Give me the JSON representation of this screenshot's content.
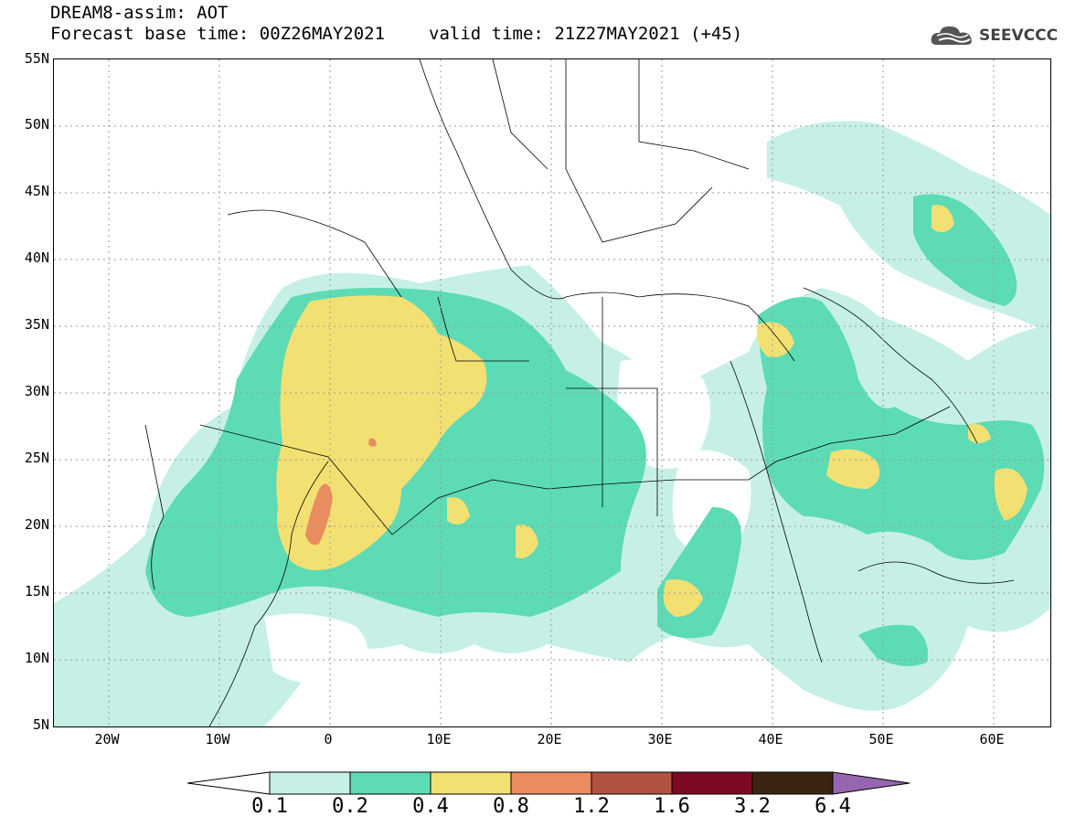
{
  "header": {
    "line1": "DREAM8-assim: AOT",
    "base_time": "Forecast base time: 00Z26MAY2021",
    "valid_time": "valid time: 21Z27MAY2021 (+45)",
    "logo_text": "SEEVCCC"
  },
  "map": {
    "region": "North Africa, Europe and Middle East",
    "lon_range": [
      -25,
      65
    ],
    "lat_range": [
      5,
      55
    ],
    "lat_ticks": [
      "55N",
      "50N",
      "45N",
      "40N",
      "35N",
      "30N",
      "25N",
      "20N",
      "15N",
      "10N",
      "5N"
    ],
    "lon_ticks": [
      "20W",
      "10W",
      "0",
      "10E",
      "20E",
      "30E",
      "40E",
      "50E",
      "60E"
    ],
    "grid": "dotted"
  },
  "colorbar": {
    "labels": [
      "0.1",
      "0.2",
      "0.4",
      "0.8",
      "1.2",
      "1.6",
      "3.2",
      "6.4"
    ],
    "colors": [
      "#ffffff",
      "#c6f0e6",
      "#5ddbb4",
      "#f3e073",
      "#e98d60",
      "#b1533f",
      "#7d0a23",
      "#3b2512",
      "#9766b0"
    ]
  }
}
